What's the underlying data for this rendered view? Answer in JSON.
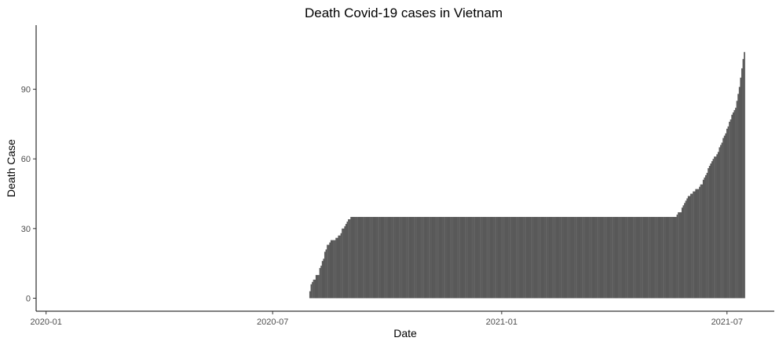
{
  "chart_data": {
    "type": "bar",
    "title": "Death Covid-19 cases in Vietnam",
    "xlabel": "Date",
    "ylabel": "Death Case",
    "x_range": [
      "2019-12-24",
      "2021-08-08"
    ],
    "y_range": [
      -5.6,
      117.6
    ],
    "x_ticks": [
      "2020-01",
      "2020-07",
      "2021-01",
      "2021-07"
    ],
    "y_ticks": [
      0,
      30,
      60,
      90
    ],
    "grid": false,
    "legend": "none",
    "bar_color": "#595959",
    "x": [
      "2020-07-31",
      "2020-08-01",
      "2020-08-02",
      "2020-08-03",
      "2020-08-04",
      "2020-08-05",
      "2020-08-06",
      "2020-08-07",
      "2020-08-08",
      "2020-08-09",
      "2020-08-10",
      "2020-08-11",
      "2020-08-12",
      "2020-08-13",
      "2020-08-14",
      "2020-08-15",
      "2020-08-16",
      "2020-08-17",
      "2020-08-18",
      "2020-08-19",
      "2020-08-20",
      "2020-08-21",
      "2020-08-22",
      "2020-08-23",
      "2020-08-24",
      "2020-08-25",
      "2020-08-26",
      "2020-08-27",
      "2020-08-28",
      "2020-08-29",
      "2020-08-30",
      "2020-08-31",
      "2020-09-01",
      "2020-09-02",
      "2020-09-03",
      "2020-09-04",
      "2020-09-05",
      "2021-05-21",
      "2021-05-22",
      "2021-05-23",
      "2021-05-24",
      "2021-05-25",
      "2021-05-26",
      "2021-05-27",
      "2021-05-28",
      "2021-05-29",
      "2021-05-30",
      "2021-05-31",
      "2021-06-01",
      "2021-06-02",
      "2021-06-03",
      "2021-06-04",
      "2021-06-05",
      "2021-06-06",
      "2021-06-07",
      "2021-06-08",
      "2021-06-09",
      "2021-06-10",
      "2021-06-11",
      "2021-06-12",
      "2021-06-13",
      "2021-06-14",
      "2021-06-15",
      "2021-06-16",
      "2021-06-17",
      "2021-06-18",
      "2021-06-19",
      "2021-06-20",
      "2021-06-21",
      "2021-06-22",
      "2021-06-23",
      "2021-06-24",
      "2021-06-25",
      "2021-06-26",
      "2021-06-27",
      "2021-06-28",
      "2021-06-29",
      "2021-06-30",
      "2021-07-01",
      "2021-07-02",
      "2021-07-03",
      "2021-07-04",
      "2021-07-05",
      "2021-07-06",
      "2021-07-07",
      "2021-07-08",
      "2021-07-09",
      "2021-07-10",
      "2021-07-11",
      "2021-07-12",
      "2021-07-13",
      "2021-07-14",
      "2021-07-15"
    ],
    "values": [
      3,
      6,
      7,
      8,
      8,
      10,
      10,
      10,
      13,
      14,
      16,
      17,
      20,
      21,
      23,
      23,
      24,
      25,
      25,
      25,
      25,
      26,
      26,
      27,
      27,
      28,
      30,
      30,
      31,
      32,
      33,
      34,
      34,
      35,
      35,
      35,
      35,
      35,
      36,
      37,
      37,
      37,
      39,
      40,
      41,
      42,
      43,
      44,
      44,
      45,
      45,
      46,
      46,
      47,
      47,
      47,
      48,
      49,
      49,
      51,
      52,
      53,
      54,
      56,
      57,
      58,
      59,
      60,
      61,
      61,
      62,
      63,
      65,
      66,
      67,
      69,
      70,
      71,
      73,
      74,
      76,
      77,
      79,
      80,
      81,
      82,
      85,
      88,
      91,
      95,
      99,
      103,
      106
    ],
    "carry_forward": true,
    "last_date": "2021-07-15"
  }
}
